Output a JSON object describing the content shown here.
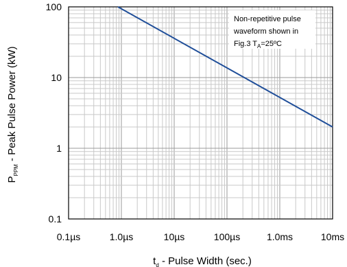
{
  "chart_data": {
    "type": "line",
    "x_scale": "log",
    "y_scale": "log",
    "xlim_seconds": [
      1e-07,
      0.01
    ],
    "ylim_kW": [
      0.1,
      100
    ],
    "grid": true,
    "x_ticks": [
      {
        "value": 1e-07,
        "label": "0.1µs"
      },
      {
        "value": 1e-06,
        "label": "1.0µs"
      },
      {
        "value": 1e-05,
        "label": "10µs"
      },
      {
        "value": 0.0001,
        "label": "100µs"
      },
      {
        "value": 0.001,
        "label": "1.0ms"
      },
      {
        "value": 0.01,
        "label": "10ms"
      }
    ],
    "y_ticks": [
      {
        "value": 0.1,
        "label": "0.1"
      },
      {
        "value": 1,
        "label": "1"
      },
      {
        "value": 10,
        "label": "10"
      },
      {
        "value": 100,
        "label": "100"
      }
    ],
    "xlabel": {
      "main": "t",
      "sub": "d",
      "rest": " - Pulse Width (sec.)"
    },
    "ylabel": {
      "main": "P",
      "sub": "PPM",
      "rest": " - Peak Pulse Power (kW)"
    },
    "series": [
      {
        "color": "#1f4e99",
        "x": [
          8.6e-07,
          0.01
        ],
        "y": [
          100,
          2
        ]
      }
    ],
    "annotation": {
      "line1": "Non-repetitive pulse",
      "line2": "waveform shown in",
      "line3_prefix": "Fig.3 T",
      "line3_sub": "A",
      "line3_suffix": "=25ºC"
    }
  }
}
